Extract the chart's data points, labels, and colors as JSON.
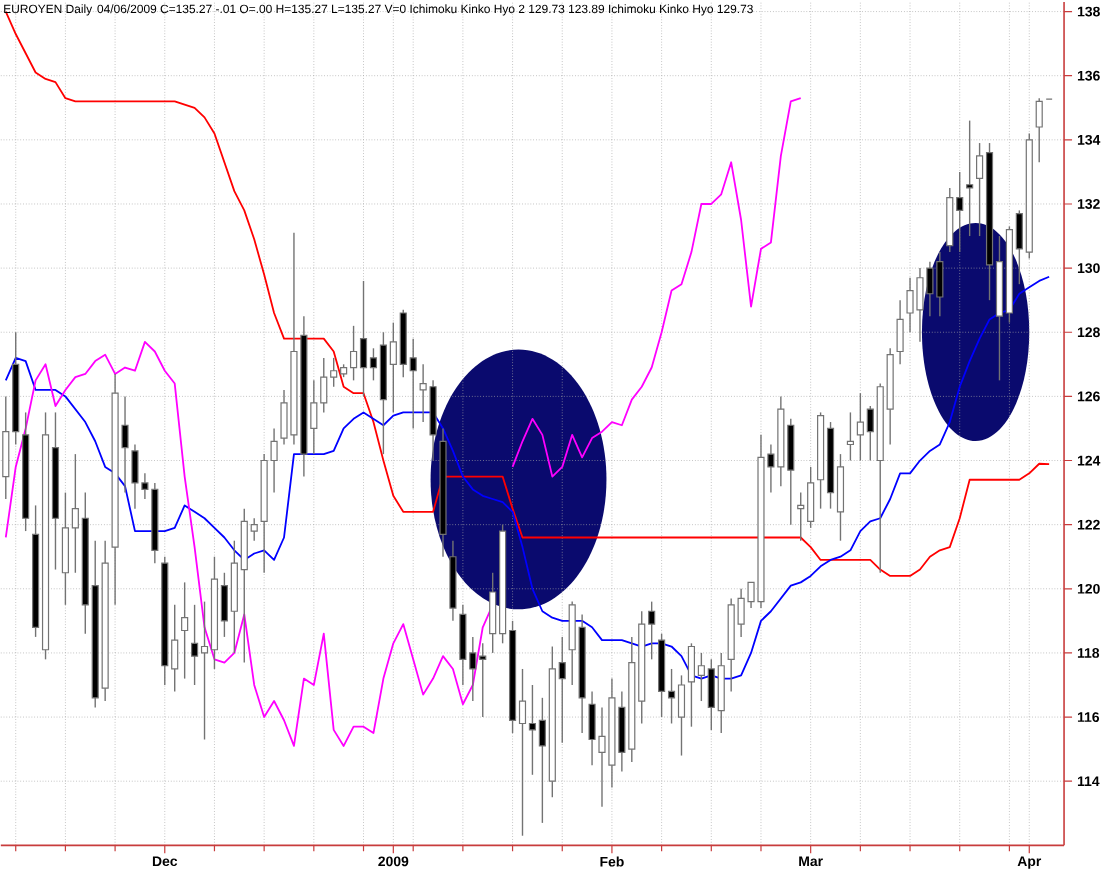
{
  "chart_data": {
    "type": "candlestick",
    "title": "EUROYEN Daily",
    "subtitle": "04/06/2009 C=135.27 -.01 O=.00 H=135.27 L=135.27 V=0 Ichimoku Kinko Hyo 2 129.73 123.89 Ichimoku Kinko Hyo 129.73",
    "categories": [
      null,
      null,
      null,
      null,
      null,
      null,
      null,
      null,
      null,
      null,
      null,
      null,
      null,
      null,
      null,
      null,
      "Dec",
      null,
      null,
      null,
      null,
      null,
      null,
      null,
      null,
      null,
      null,
      null,
      null,
      null,
      null,
      null,
      null,
      null,
      null,
      null,
      null,
      null,
      null,
      "2009",
      null,
      null,
      null,
      null,
      null,
      null,
      null,
      null,
      null,
      null,
      null,
      null,
      null,
      null,
      null,
      null,
      null,
      null,
      null,
      null,
      null,
      "Feb",
      null,
      null,
      null,
      null,
      null,
      null,
      null,
      null,
      null,
      null,
      null,
      null,
      null,
      null,
      null,
      null,
      null,
      null,
      null,
      "Mar",
      null,
      null,
      null,
      null,
      null,
      null,
      null,
      null,
      null,
      null,
      null,
      null,
      null,
      null,
      null,
      null,
      null,
      null,
      null,
      null,
      null,
      "Apr",
      null,
      null
    ],
    "ohlc": [
      [
        123.5,
        126.0,
        122.8,
        124.9
      ],
      [
        127.0,
        128.0,
        124.5,
        124.9
      ],
      [
        124.8,
        125.5,
        121.8,
        122.2
      ],
      [
        121.7,
        122.6,
        118.5,
        118.8
      ],
      [
        118.1,
        125.5,
        117.8,
        124.8
      ],
      [
        124.4,
        125.5,
        120.6,
        122.2
      ],
      [
        120.5,
        123.0,
        119.5,
        121.9
      ],
      [
        121.9,
        124.2,
        120.5,
        122.5
      ],
      [
        122.2,
        123.0,
        118.6,
        119.5
      ],
      [
        120.1,
        121.5,
        116.3,
        116.6
      ],
      [
        116.9,
        121.5,
        116.5,
        120.8
      ],
      [
        121.3,
        126.7,
        119.5,
        126.1
      ],
      [
        125.1,
        126.0,
        123.0,
        124.4
      ],
      [
        124.3,
        124.5,
        122.5,
        123.3
      ],
      [
        123.3,
        123.6,
        122.8,
        123.1
      ],
      [
        123.1,
        123.3,
        120.8,
        121.2
      ],
      [
        120.8,
        121.0,
        117.0,
        117.6
      ],
      [
        117.5,
        119.5,
        116.8,
        118.4
      ],
      [
        118.7,
        120.2,
        117.2,
        119.1
      ],
      [
        118.3,
        119.5,
        117.0,
        117.9
      ],
      [
        118.0,
        119.6,
        115.3,
        118.2
      ],
      [
        118.1,
        121.0,
        117.5,
        120.3
      ],
      [
        120.1,
        120.5,
        118.5,
        119.0
      ],
      [
        119.3,
        121.5,
        118.0,
        120.8
      ],
      [
        120.6,
        122.5,
        117.7,
        122.1
      ],
      [
        121.8,
        122.2,
        121.5,
        122.0
      ],
      [
        122.1,
        124.2,
        120.5,
        124.0
      ],
      [
        124.0,
        125.0,
        123.0,
        124.6
      ],
      [
        124.7,
        126.2,
        124.5,
        125.8
      ],
      [
        124.8,
        131.1,
        124.5,
        127.4
      ],
      [
        127.9,
        128.5,
        123.5,
        124.2
      ],
      [
        125.0,
        126.5,
        124.2,
        125.8
      ],
      [
        125.8,
        127.2,
        125.5,
        126.6
      ],
      [
        126.6,
        127.2,
        126.3,
        126.8
      ],
      [
        126.7,
        127.0,
        126.6,
        126.9
      ],
      [
        126.9,
        128.2,
        126.5,
        127.4
      ],
      [
        127.8,
        129.6,
        126.0,
        126.9
      ],
      [
        127.2,
        127.5,
        126.5,
        126.9
      ],
      [
        127.6,
        128.0,
        124.2,
        125.9
      ],
      [
        127.0,
        128.3,
        125.5,
        127.7
      ],
      [
        128.6,
        128.7,
        126.6,
        127.0
      ],
      [
        127.2,
        127.8,
        125.0,
        126.8
      ],
      [
        126.2,
        127.0,
        125.2,
        126.4
      ],
      [
        126.3,
        126.5,
        124.0,
        124.8
      ],
      [
        124.6,
        125.0,
        121.0,
        121.7
      ],
      [
        121.0,
        121.5,
        119.0,
        119.4
      ],
      [
        119.2,
        119.5,
        117.0,
        117.8
      ],
      [
        118.0,
        118.5,
        116.5,
        117.5
      ],
      [
        117.9,
        118.3,
        116.0,
        117.8
      ],
      [
        118.6,
        120.5,
        118.0,
        119.9
      ],
      [
        118.6,
        122.0,
        118.3,
        121.8
      ],
      [
        118.7,
        119.0,
        115.5,
        115.9
      ],
      [
        115.8,
        117.5,
        112.3,
        116.5
      ],
      [
        115.8,
        117.0,
        114.2,
        115.6
      ],
      [
        115.9,
        116.6,
        112.7,
        115.1
      ],
      [
        114.0,
        118.2,
        113.5,
        117.5
      ],
      [
        117.7,
        118.5,
        115.2,
        117.2
      ],
      [
        118.1,
        119.6,
        117.0,
        119.5
      ],
      [
        118.8,
        119.2,
        115.5,
        116.6
      ],
      [
        116.4,
        116.8,
        114.5,
        115.3
      ],
      [
        114.9,
        116.3,
        113.2,
        115.4
      ],
      [
        114.5,
        117.2,
        113.8,
        116.6
      ],
      [
        116.3,
        116.8,
        114.3,
        114.9
      ],
      [
        115.0,
        118.5,
        114.6,
        117.7
      ],
      [
        116.5,
        119.3,
        115.8,
        118.9
      ],
      [
        119.3,
        119.6,
        117.8,
        118.9
      ],
      [
        118.4,
        118.6,
        116.0,
        116.8
      ],
      [
        116.8,
        117.5,
        115.8,
        116.6
      ],
      [
        116.0,
        117.3,
        114.8,
        117.0
      ],
      [
        117.1,
        118.3,
        115.7,
        118.2
      ],
      [
        117.3,
        118.0,
        116.5,
        117.6
      ],
      [
        117.5,
        117.8,
        115.6,
        116.3
      ],
      [
        116.2,
        118.0,
        115.5,
        117.6
      ],
      [
        117.8,
        119.7,
        116.8,
        119.5
      ],
      [
        118.9,
        120.0,
        118.5,
        119.7
      ],
      [
        119.6,
        120.2,
        119.4,
        120.2
      ],
      [
        119.6,
        124.8,
        119.4,
        124.1
      ],
      [
        124.2,
        124.5,
        123.0,
        123.8
      ],
      [
        123.8,
        126.0,
        123.2,
        125.6
      ],
      [
        125.1,
        125.3,
        122.0,
        123.7
      ],
      [
        122.5,
        123.0,
        121.5,
        122.6
      ],
      [
        122.1,
        123.8,
        121.9,
        123.3
      ],
      [
        123.4,
        125.5,
        122.5,
        125.4
      ],
      [
        125.0,
        125.2,
        122.5,
        123.0
      ],
      [
        122.4,
        124.2,
        121.5,
        123.8
      ],
      [
        124.5,
        125.5,
        124.0,
        124.6
      ],
      [
        124.8,
        126.1,
        124.0,
        125.2
      ],
      [
        125.6,
        125.7,
        124.0,
        124.9
      ],
      [
        124.0,
        126.4,
        120.5,
        126.3
      ],
      [
        125.6,
        127.5,
        124.5,
        127.3
      ],
      [
        127.4,
        129.0,
        127.0,
        128.4
      ],
      [
        128.6,
        129.7,
        128.0,
        129.3
      ],
      [
        128.7,
        130.0,
        127.7,
        129.7
      ],
      [
        130.0,
        130.2,
        128.5,
        129.2
      ],
      [
        130.2,
        130.5,
        128.5,
        129.1
      ],
      [
        130.7,
        132.5,
        130.5,
        132.2
      ],
      [
        132.2,
        133.0,
        130.5,
        131.8
      ],
      [
        132.6,
        134.6,
        131.0,
        132.5
      ],
      [
        132.8,
        133.9,
        131.0,
        133.5
      ],
      [
        133.6,
        133.9,
        129.0,
        130.1
      ],
      [
        128.5,
        131.0,
        126.5,
        130.2
      ],
      [
        128.6,
        131.3,
        128.3,
        131.2
      ],
      [
        131.7,
        131.8,
        129.5,
        130.6
      ],
      [
        130.5,
        134.2,
        130.3,
        134.0
      ],
      [
        134.4,
        135.3,
        133.3,
        135.2
      ],
      [
        135.27,
        135.27,
        135.27,
        135.27
      ]
    ],
    "series": [
      {
        "type": "line",
        "color": "#ff0000",
        "values": [
          138.0,
          137.3,
          136.7,
          136.1,
          135.9,
          135.8,
          135.3,
          135.2,
          135.2,
          135.2,
          135.2,
          135.2,
          135.2,
          135.2,
          135.2,
          135.2,
          135.2,
          135.2,
          135.1,
          135.0,
          134.7,
          134.2,
          133.3,
          132.4,
          131.8,
          130.9,
          129.8,
          128.6,
          127.8,
          127.8,
          127.8,
          127.8,
          127.8,
          127.4,
          126.3,
          126.1,
          126.1,
          125.2,
          124.0,
          122.9,
          122.4,
          122.4,
          122.4,
          122.4,
          123.5,
          123.5,
          123.5,
          123.5,
          123.5,
          123.5,
          123.5,
          122.5,
          121.6,
          121.6,
          121.6,
          121.6,
          121.6,
          121.6,
          121.6,
          121.6,
          121.6,
          121.6,
          121.6,
          121.6,
          121.6,
          121.6,
          121.6,
          121.6,
          121.6,
          121.6,
          121.6,
          121.6,
          121.6,
          121.6,
          121.6,
          121.6,
          121.6,
          121.6,
          121.6,
          121.6,
          121.6,
          121.3,
          120.9,
          120.9,
          120.9,
          120.9,
          120.9,
          120.9,
          120.6,
          120.4,
          120.4,
          120.4,
          120.6,
          121.0,
          121.2,
          121.3,
          122.2,
          123.4,
          123.4,
          123.4,
          123.4,
          123.4,
          123.4,
          123.6,
          123.9,
          123.89
        ]
      },
      {
        "type": "line",
        "color": "#0000ff",
        "values": [
          126.5,
          127.2,
          127.1,
          126.2,
          126.2,
          126.2,
          126.0,
          125.6,
          125.2,
          124.6,
          123.8,
          123.6,
          123.2,
          121.8,
          121.8,
          121.8,
          121.8,
          121.9,
          122.6,
          122.4,
          122.2,
          121.9,
          121.6,
          121.2,
          120.9,
          121.1,
          121.2,
          120.9,
          121.6,
          124.2,
          124.2,
          124.2,
          124.2,
          124.3,
          125.0,
          125.3,
          125.5,
          125.3,
          125.1,
          125.4,
          125.5,
          125.5,
          125.5,
          125.5,
          125.0,
          124.3,
          123.5,
          123.1,
          122.9,
          122.8,
          122.7,
          122.4,
          121.3,
          120.0,
          119.3,
          119.1,
          119.0,
          119.0,
          119.0,
          118.8,
          118.4,
          118.4,
          118.4,
          118.3,
          118.2,
          118.3,
          118.3,
          118.2,
          117.9,
          117.3,
          117.2,
          117.3,
          117.2,
          117.2,
          117.3,
          118.0,
          119.0,
          119.3,
          119.7,
          120.1,
          120.2,
          120.4,
          120.7,
          120.9,
          121.0,
          121.2,
          121.8,
          122.1,
          122.2,
          122.8,
          123.6,
          123.6,
          124.0,
          124.3,
          124.5,
          125.2,
          126.3,
          127.1,
          127.8,
          128.4,
          128.6,
          128.7,
          129.2,
          129.4,
          129.6,
          129.73
        ]
      },
      {
        "type": "line",
        "color": "#ff00ff",
        "values": [
          121.6,
          123.8,
          125.0,
          126.5,
          127.0,
          125.7,
          126.2,
          126.6,
          126.7,
          127.1,
          127.3,
          126.7,
          126.9,
          126.8,
          127.7,
          127.4,
          126.8,
          126.4,
          123.5,
          121.3,
          118.8,
          117.8,
          117.7,
          118.0,
          119.2,
          117.0,
          116.0,
          116.5,
          115.9,
          115.1,
          117.2,
          117.0,
          118.6,
          115.6,
          115.1,
          115.7,
          115.7,
          115.5,
          117.2,
          118.3,
          118.9,
          117.8,
          116.7,
          117.2,
          117.9,
          117.5,
          116.4,
          117.0,
          118.8,
          119.5,
          null,
          123.8,
          124.6,
          125.3,
          124.8,
          123.5,
          123.8,
          124.8,
          124.1,
          124.7,
          124.9,
          125.2,
          125.1,
          125.9,
          126.3,
          126.9,
          128.0,
          129.3,
          129.5,
          130.5,
          132.0,
          132.0,
          132.3,
          133.3,
          131.5,
          128.8,
          130.6,
          130.8,
          133.5,
          135.2,
          135.3,
          null,
          null,
          null,
          null,
          null,
          null,
          null,
          null,
          null,
          null,
          null,
          null,
          null,
          null,
          null,
          null,
          null,
          null,
          null,
          null,
          null,
          null,
          null,
          null,
          null
        ]
      }
    ],
    "ylim": [
      112,
      138.3
    ],
    "yticks": [
      114,
      116,
      118,
      120,
      122,
      124,
      126,
      128,
      130,
      132,
      134,
      136,
      138
    ],
    "grid": true
  }
}
